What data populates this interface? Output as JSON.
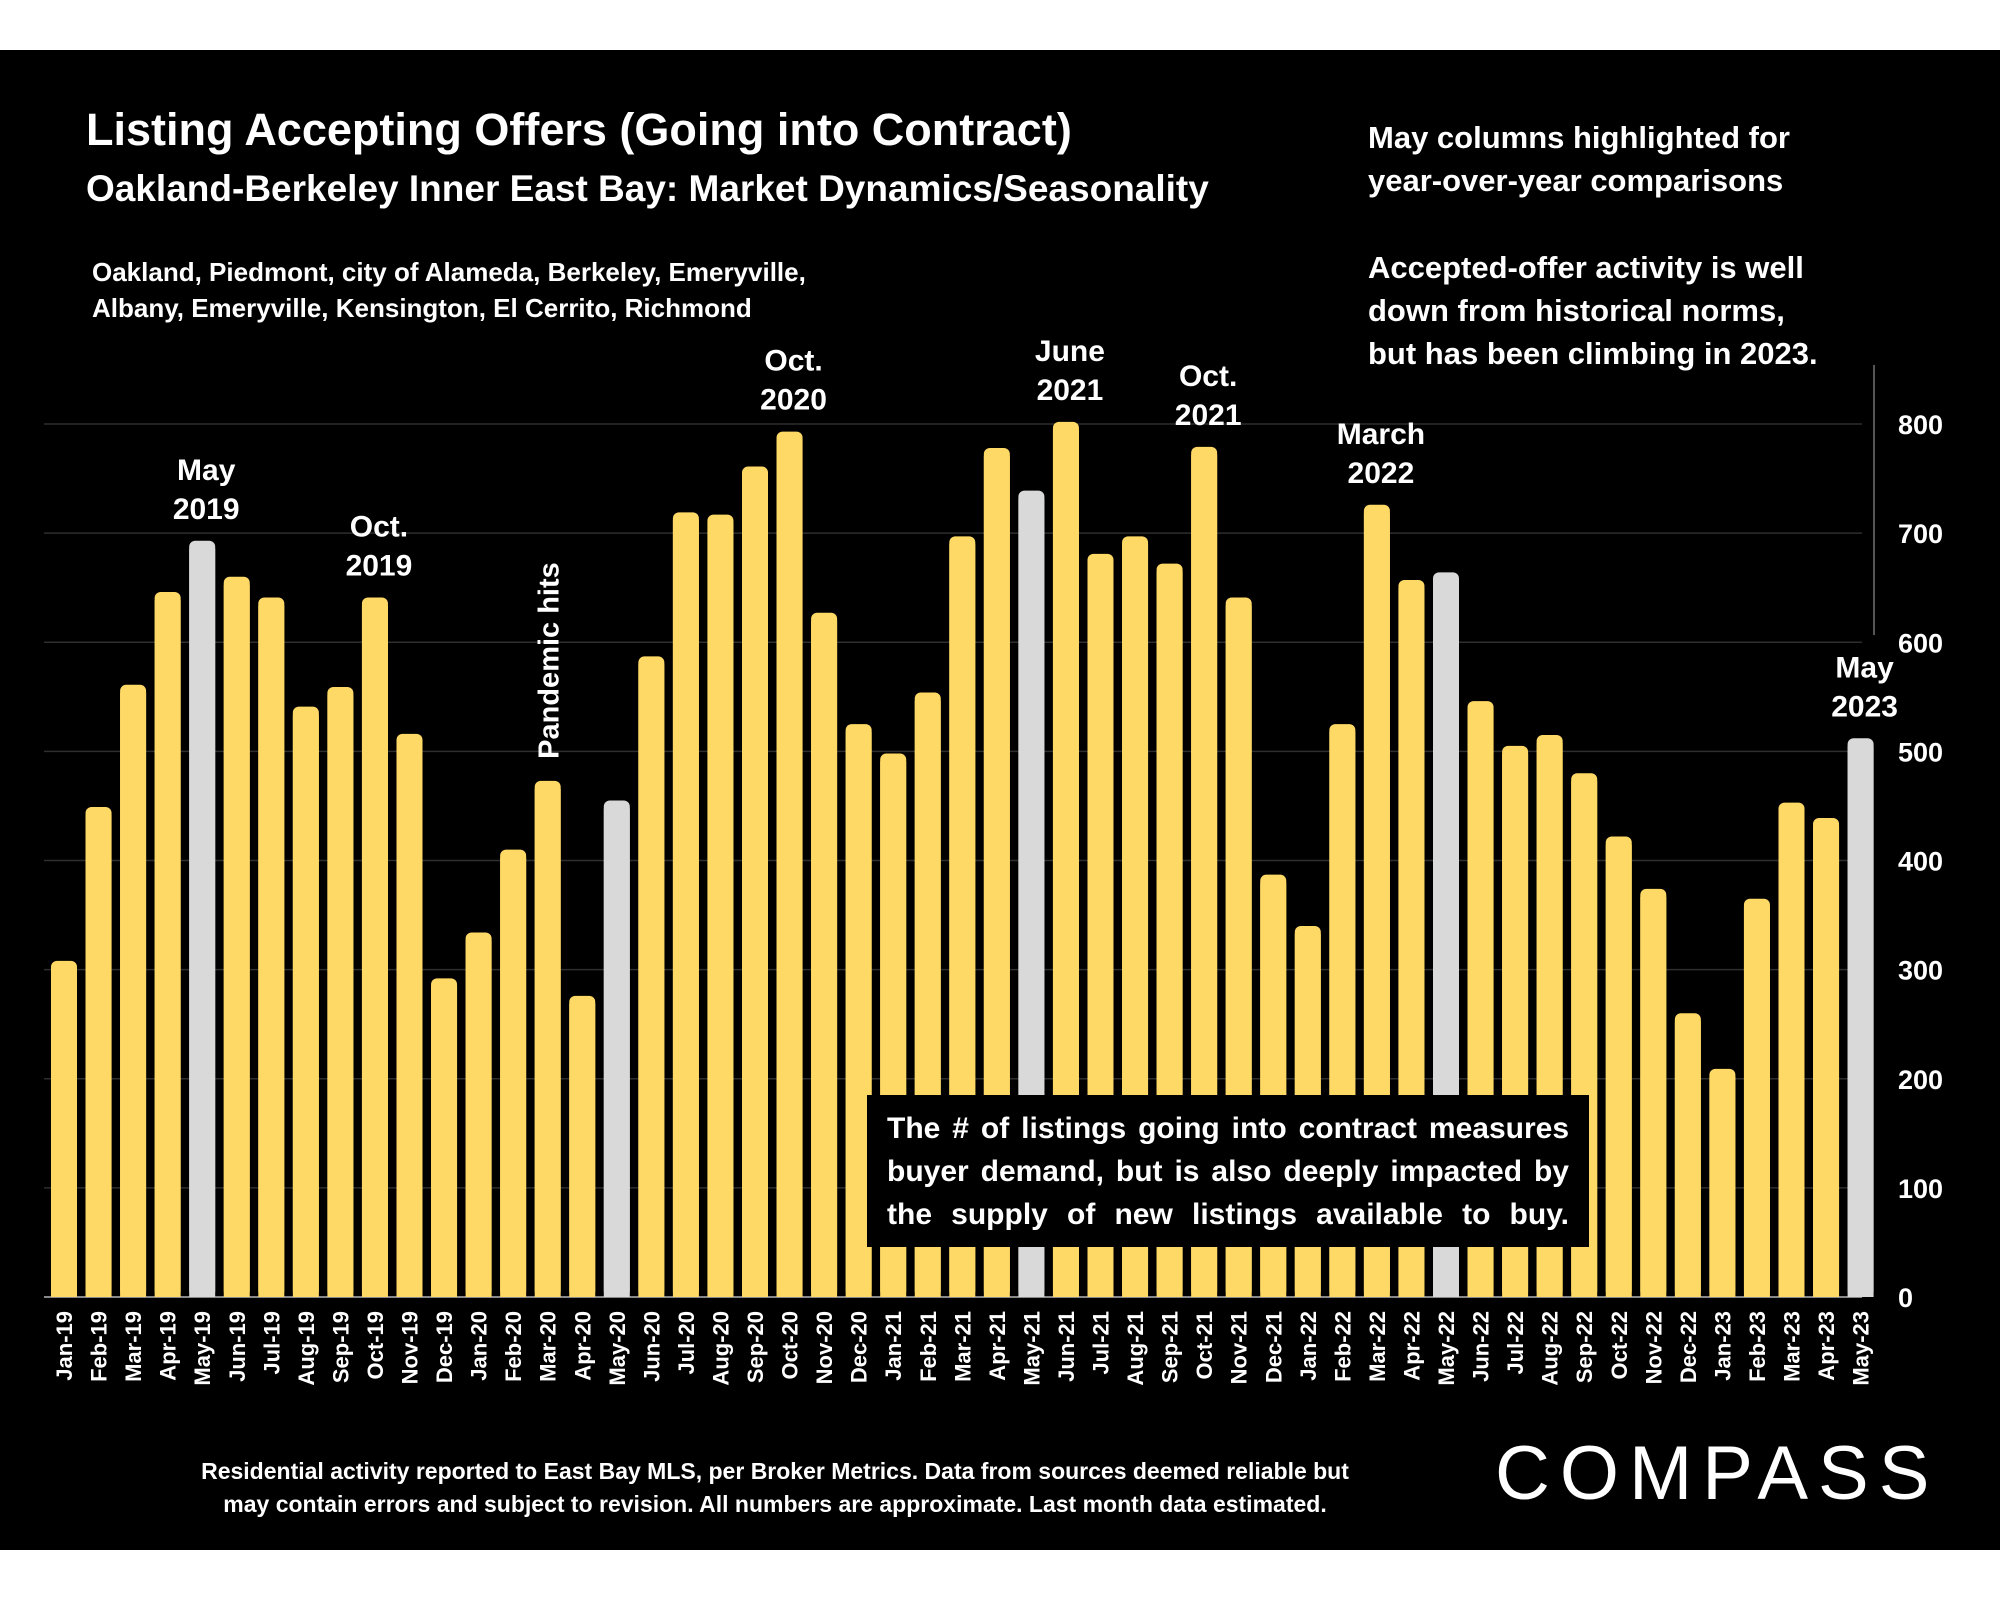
{
  "header": {
    "title": "Listing Accepting Offers (Going into Contract)",
    "subtitle": "Oakland-Berkeley Inner East Bay: Market Dynamics/Seasonality",
    "areas_line1": "Oakland, Piedmont, city of Alameda, Berkeley, Emeryville,",
    "areas_line2": "Albany, Emeryville, Kensington, El Cerrito, Richmond"
  },
  "notes": {
    "note1_line1": "May columns highlighted for",
    "note1_line2": "year-over-year comparisons",
    "note2_line1": "Accepted-offer activity is well",
    "note2_line2": "down from historical norms,",
    "note2_line3": "but has been climbing in 2023."
  },
  "callout": "The # of listings going into contract measures buyer demand, but is also deeply impacted by the supply of new listings available to buy.",
  "footnote_line1": "Residential activity reported to East Bay MLS, per Broker Metrics. Data from sources deemed reliable but",
  "footnote_line2": "may contain errors and subject to revision. All numbers are approximate. Last month data estimated.",
  "logo": "COMPASS",
  "colors": {
    "bar": "#FFD966",
    "highlight": "#D9D9D9",
    "background": "#000000",
    "text": "#FFFFFF"
  },
  "chart_data": {
    "type": "bar",
    "title": "Listing Accepting Offers (Going into Contract)",
    "subtitle": "Oakland-Berkeley Inner East Bay: Market Dynamics/Seasonality",
    "categories": [
      "Jan-19",
      "Feb-19",
      "Mar-19",
      "Apr-19",
      "May-19",
      "Jun-19",
      "Jul-19",
      "Aug-19",
      "Sep-19",
      "Oct-19",
      "Nov-19",
      "Dec-19",
      "Jan-20",
      "Feb-20",
      "Mar-20",
      "Apr-20",
      "May-20",
      "Jun-20",
      "Jul-20",
      "Aug-20",
      "Sep-20",
      "Oct-20",
      "Nov-20",
      "Dec-20",
      "Jan-21",
      "Feb-21",
      "Mar-21",
      "Apr-21",
      "May-21",
      "Jun-21",
      "Jul-21",
      "Aug-21",
      "Sep-21",
      "Oct-21",
      "Nov-21",
      "Dec-21",
      "Jan-22",
      "Feb-22",
      "Mar-22",
      "Apr-22",
      "May-22",
      "Jun-22",
      "Jul-22",
      "Aug-22",
      "Sep-22",
      "Oct-22",
      "Nov-22",
      "Dec-22",
      "Jan-23",
      "Feb-23",
      "Mar-23",
      "Apr-23",
      "May-23"
    ],
    "values": [
      308,
      449,
      561,
      646,
      693,
      660,
      641,
      541,
      559,
      641,
      516,
      292,
      334,
      410,
      473,
      276,
      455,
      587,
      719,
      717,
      761,
      793,
      627,
      525,
      498,
      554,
      697,
      778,
      739,
      802,
      681,
      697,
      672,
      779,
      641,
      387,
      340,
      525,
      726,
      657,
      664,
      546,
      505,
      515,
      480,
      422,
      374,
      260,
      209,
      365,
      453,
      439,
      512
    ],
    "highlighted": [
      "May-19",
      "May-20",
      "May-21",
      "May-22",
      "May-23"
    ],
    "ylim": [
      0,
      800
    ],
    "yticks": [
      0,
      100,
      200,
      300,
      400,
      500,
      600,
      700,
      800
    ],
    "y_axis_side": "right",
    "grid": true,
    "annotations": [
      {
        "category": "May-19",
        "text": [
          "May",
          "2019"
        ]
      },
      {
        "category": "Oct-19",
        "text": [
          "Oct.",
          "2019"
        ]
      },
      {
        "category": "Mar-20",
        "text": [
          "Pandemic hits"
        ],
        "rotated": true
      },
      {
        "category": "Oct-20",
        "text": [
          "Oct.",
          "2020"
        ]
      },
      {
        "category": "Jun-21",
        "text": [
          "June",
          "2021"
        ]
      },
      {
        "category": "Oct-21",
        "text": [
          "Oct.",
          "2021"
        ]
      },
      {
        "category": "Mar-22",
        "text": [
          "March",
          "2022"
        ]
      },
      {
        "category": "May-23",
        "text": [
          "May",
          "2023"
        ]
      }
    ]
  }
}
